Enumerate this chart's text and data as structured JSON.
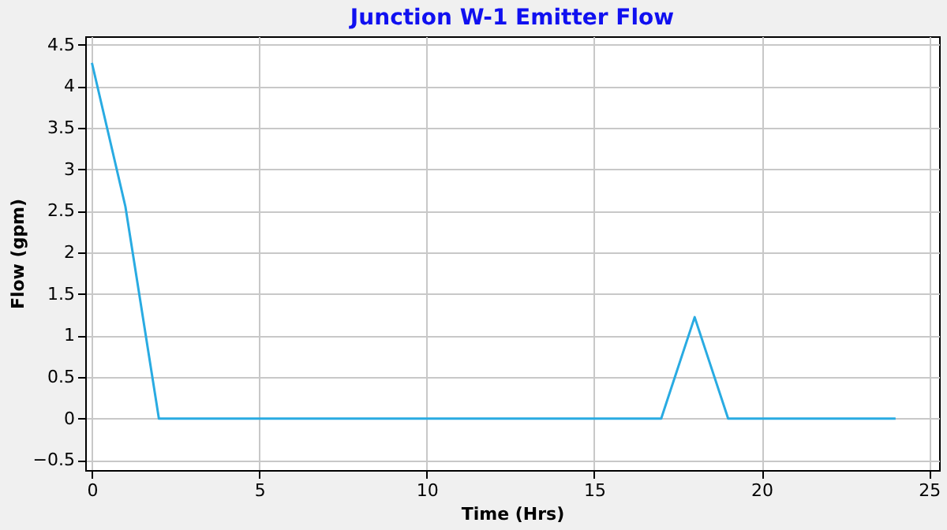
{
  "chart_data": {
    "type": "line",
    "title": "Junction W-1 Emitter Flow",
    "xlabel": "Time (Hrs)",
    "ylabel": "Flow (gpm)",
    "x": [
      0,
      1,
      2,
      17,
      18,
      19,
      24
    ],
    "series": [
      {
        "color": "#29abe2",
        "values": [
          4.28,
          2.55,
          0,
          0,
          1.22,
          0,
          0
        ]
      }
    ],
    "xlim": [
      -0.2,
      25.3
    ],
    "ylim": [
      -0.62,
      4.6
    ],
    "xticks": [
      0,
      5,
      10,
      15,
      20,
      25
    ],
    "yticks": [
      -0.5,
      0,
      0.5,
      1,
      1.5,
      2,
      2.5,
      3,
      3.5,
      4,
      4.5
    ],
    "grid": true,
    "legend": false,
    "marker": "none",
    "line_style": "solid"
  }
}
